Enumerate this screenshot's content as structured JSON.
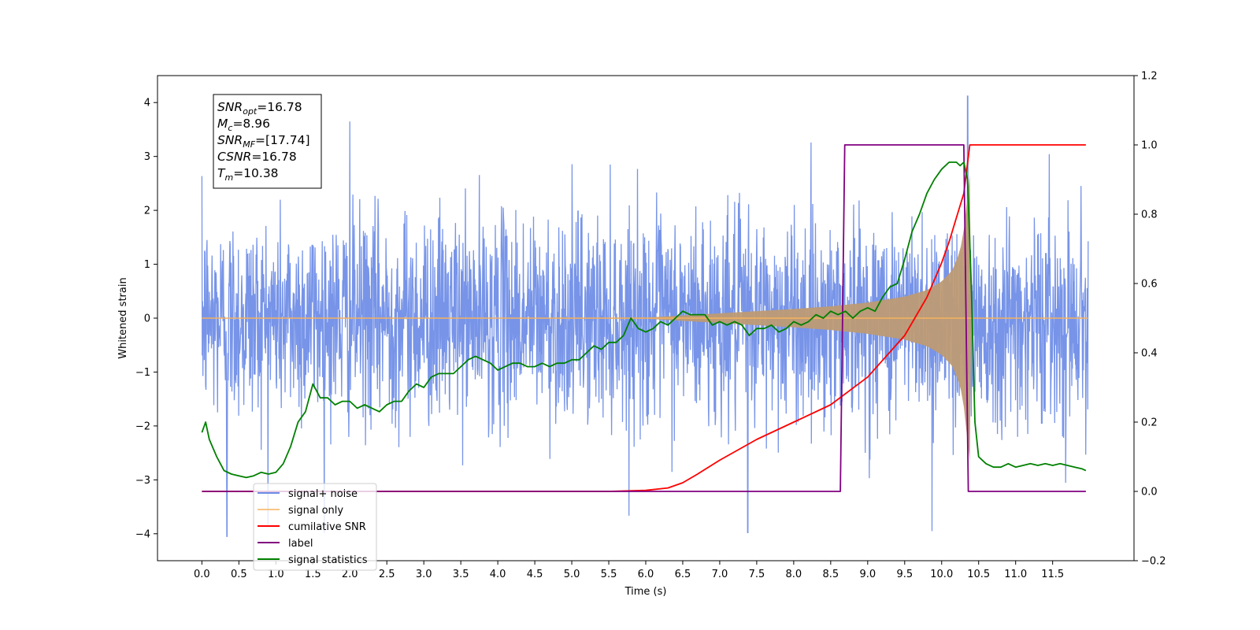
{
  "chart_data": {
    "type": "line",
    "xlabel": "Time (s)",
    "ylabel_left": "Whitened strain",
    "ylabel_right": "",
    "xlim": [
      -0.6,
      12.6
    ],
    "ylim_left": [
      -4.5,
      4.5
    ],
    "ylim_right": [
      -0.2,
      1.2
    ],
    "x_ticks": [
      "0.0",
      "0.5",
      "1.0",
      "1.5",
      "2.0",
      "2.5",
      "3.0",
      "3.5",
      "4.0",
      "4.5",
      "5.0",
      "5.5",
      "6.0",
      "6.5",
      "7.0",
      "7.5",
      "8.0",
      "8.5",
      "9.0",
      "9.5",
      "10.0",
      "10.5",
      "11.0",
      "11.5"
    ],
    "y_ticks_left": [
      "−4",
      "−3",
      "−2",
      "−1",
      "0",
      "1",
      "2",
      "3",
      "4"
    ],
    "y_ticks_right": [
      "−0.2",
      "0.0",
      "0.2",
      "0.4",
      "0.6",
      "0.8",
      "1.0",
      "1.2"
    ],
    "grid": false,
    "legend_position": "lower-left",
    "annotation": {
      "lines": [
        {
          "sym": "SNR",
          "sub": "opt",
          "val": "=16.78"
        },
        {
          "sym": "M",
          "sub": "c",
          "val": "=8.96"
        },
        {
          "sym": "SNR",
          "sub": "MF",
          "val": "=[17.74]"
        },
        {
          "sym": "CSNR",
          "sub": "",
          "val": "=16.78"
        },
        {
          "sym": "T",
          "sub": "m",
          "val": "=10.38"
        }
      ]
    },
    "series": [
      {
        "name": "signal+ noise",
        "axis": "left",
        "color": "#6b8be6",
        "description": "Gaussian whitened noise (std ~1) over 0–12 s, peaks up to 4.1 near 10.35 s and down to −4.05 near 0.35 s"
      },
      {
        "name": "signal only",
        "axis": "left",
        "color": "#f5b15c",
        "envelope_x": [
          0.0,
          6.0,
          6.5,
          7.0,
          7.5,
          8.0,
          8.5,
          9.0,
          9.5,
          9.8,
          10.0,
          10.15,
          10.25,
          10.3,
          10.36,
          10.38
        ],
        "envelope_y": [
          0.0,
          0.01,
          0.05,
          0.09,
          0.13,
          0.17,
          0.22,
          0.29,
          0.4,
          0.52,
          0.68,
          0.9,
          1.25,
          1.65,
          2.4,
          2.65
        ]
      },
      {
        "name": "cumilative SNR",
        "axis": "right",
        "color": "#ff0000",
        "x": [
          0.0,
          5.5,
          6.0,
          6.3,
          6.5,
          6.7,
          7.0,
          7.5,
          8.0,
          8.5,
          9.0,
          9.5,
          9.8,
          10.0,
          10.1,
          10.2,
          10.3,
          10.38,
          10.4,
          11.95
        ],
        "y": [
          0.0,
          0.0,
          0.003,
          0.01,
          0.025,
          0.05,
          0.09,
          0.15,
          0.2,
          0.25,
          0.33,
          0.45,
          0.56,
          0.66,
          0.72,
          0.79,
          0.86,
          1.0,
          1.0,
          1.0
        ]
      },
      {
        "name": "label",
        "axis": "right",
        "color": "#800080",
        "x": [
          0.0,
          8.63,
          8.69,
          10.3,
          10.36,
          11.95
        ],
        "y": [
          0.0,
          0.0,
          1.0,
          1.0,
          0.0,
          0.0
        ]
      },
      {
        "name": "signal statistics",
        "axis": "right",
        "color": "#008000",
        "x": [
          0.0,
          0.05,
          0.1,
          0.2,
          0.3,
          0.4,
          0.5,
          0.6,
          0.7,
          0.8,
          0.9,
          1.0,
          1.1,
          1.2,
          1.3,
          1.4,
          1.5,
          1.6,
          1.7,
          1.8,
          1.9,
          2.0,
          2.1,
          2.2,
          2.3,
          2.4,
          2.5,
          2.6,
          2.7,
          2.8,
          2.9,
          3.0,
          3.1,
          3.2,
          3.3,
          3.4,
          3.5,
          3.6,
          3.7,
          3.8,
          3.9,
          4.0,
          4.1,
          4.2,
          4.3,
          4.4,
          4.5,
          4.6,
          4.7,
          4.8,
          4.9,
          5.0,
          5.1,
          5.2,
          5.3,
          5.4,
          5.5,
          5.6,
          5.7,
          5.8,
          5.9,
          6.0,
          6.1,
          6.2,
          6.3,
          6.4,
          6.5,
          6.6,
          6.7,
          6.8,
          6.9,
          7.0,
          7.1,
          7.2,
          7.3,
          7.4,
          7.5,
          7.6,
          7.7,
          7.8,
          7.9,
          8.0,
          8.1,
          8.2,
          8.3,
          8.4,
          8.5,
          8.6,
          8.7,
          8.8,
          8.9,
          9.0,
          9.1,
          9.2,
          9.3,
          9.4,
          9.5,
          9.6,
          9.7,
          9.8,
          9.9,
          10.0,
          10.1,
          10.2,
          10.25,
          10.3,
          10.35,
          10.4,
          10.45,
          10.5,
          10.6,
          10.7,
          10.8,
          10.9,
          11.0,
          11.1,
          11.2,
          11.3,
          11.4,
          11.5,
          11.6,
          11.7,
          11.8,
          11.9,
          11.95
        ],
        "y": [
          0.17,
          0.2,
          0.15,
          0.1,
          0.06,
          0.05,
          0.045,
          0.04,
          0.045,
          0.055,
          0.05,
          0.055,
          0.08,
          0.13,
          0.2,
          0.23,
          0.31,
          0.27,
          0.27,
          0.25,
          0.26,
          0.26,
          0.24,
          0.25,
          0.24,
          0.23,
          0.25,
          0.26,
          0.26,
          0.29,
          0.31,
          0.3,
          0.33,
          0.34,
          0.34,
          0.34,
          0.36,
          0.38,
          0.39,
          0.38,
          0.37,
          0.35,
          0.36,
          0.37,
          0.37,
          0.36,
          0.36,
          0.37,
          0.36,
          0.37,
          0.37,
          0.38,
          0.38,
          0.4,
          0.42,
          0.41,
          0.43,
          0.43,
          0.45,
          0.5,
          0.47,
          0.46,
          0.47,
          0.49,
          0.48,
          0.5,
          0.52,
          0.51,
          0.51,
          0.51,
          0.48,
          0.49,
          0.48,
          0.49,
          0.48,
          0.45,
          0.47,
          0.47,
          0.48,
          0.46,
          0.47,
          0.49,
          0.48,
          0.49,
          0.51,
          0.5,
          0.52,
          0.51,
          0.52,
          0.5,
          0.52,
          0.53,
          0.52,
          0.56,
          0.59,
          0.6,
          0.67,
          0.75,
          0.8,
          0.86,
          0.9,
          0.93,
          0.95,
          0.95,
          0.94,
          0.95,
          0.9,
          0.6,
          0.2,
          0.1,
          0.08,
          0.07,
          0.07,
          0.08,
          0.07,
          0.075,
          0.08,
          0.075,
          0.08,
          0.075,
          0.08,
          0.075,
          0.07,
          0.065,
          0.06
        ]
      }
    ]
  }
}
